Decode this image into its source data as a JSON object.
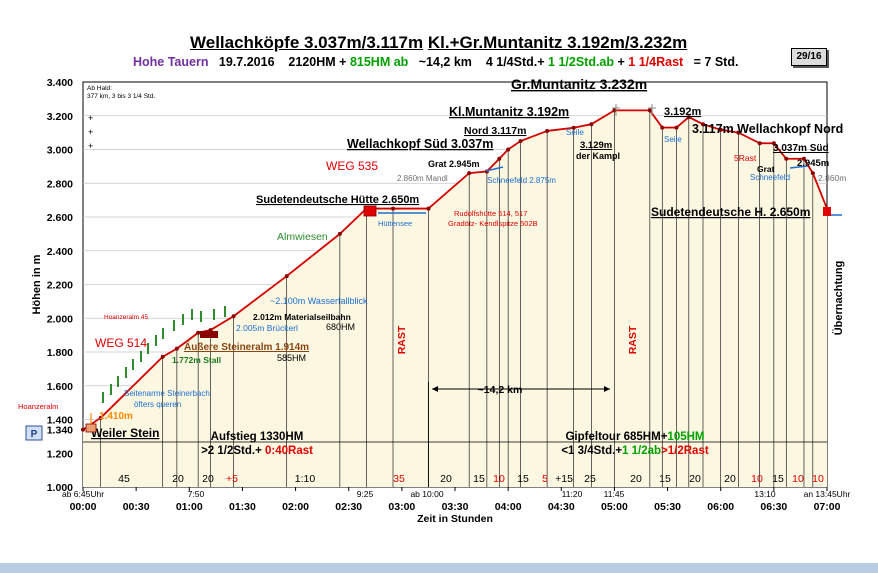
{
  "header": {
    "title_part1": "Wellachköpfe 3.037m/3.117m",
    "title_part2": "Kl.+Gr.Muntanitz 3.192m/3.232m",
    "sub": {
      "region": "Hohe Tauern",
      "date": "19.7.2016",
      "hm": "2120HM",
      "plus": "+",
      "hm_ab": "815HM ab",
      "dist": "~14,2 km",
      "time1": "4 1/4Std.+",
      "time2": "1 1/2Std.ab",
      "plus2": "+",
      "time3": "1 1/4Rast",
      "total": "= 7  Std."
    },
    "page_badge": "29/16"
  },
  "chart_data": {
    "type": "line",
    "title": "",
    "xlabel": "Zeit in Stunden",
    "ylabel": "Höhen in m",
    "x_ticks": [
      "00:00",
      "00:30",
      "01:00",
      "01:30",
      "02:00",
      "02:30",
      "03:00",
      "03:30",
      "04:00",
      "04:30",
      "05:00",
      "05:30",
      "06:00",
      "06:30",
      "07:00"
    ],
    "y_ticks": [
      "1.000",
      "1.200",
      "1.340",
      "1.400",
      "1.600",
      "1.800",
      "2.000",
      "2.200",
      "2.400",
      "2.600",
      "2.800",
      "3.000",
      "3.200",
      "3.400"
    ],
    "xlim": [
      "00:00",
      "07:00"
    ],
    "ylim": [
      1000,
      3400
    ],
    "grid": "horizontal",
    "profile": [
      {
        "t": "00:00",
        "h": 1340
      },
      {
        "t": "00:10",
        "h": 1410
      },
      {
        "t": "00:45",
        "h": 1772
      },
      {
        "t": "00:53",
        "h": 1820
      },
      {
        "t": "01:05",
        "h": 1914
      },
      {
        "t": "01:12",
        "h": 1930
      },
      {
        "t": "01:25",
        "h": 2012
      },
      {
        "t": "01:55",
        "h": 2250
      },
      {
        "t": "02:25",
        "h": 2500
      },
      {
        "t": "02:40",
        "h": 2650
      },
      {
        "t": "02:55",
        "h": 2650
      },
      {
        "t": "03:15",
        "h": 2650
      },
      {
        "t": "03:38",
        "h": 2860
      },
      {
        "t": "03:48",
        "h": 2870
      },
      {
        "t": "03:55",
        "h": 2945
      },
      {
        "t": "04:00",
        "h": 3000
      },
      {
        "t": "04:07",
        "h": 3050
      },
      {
        "t": "04:22",
        "h": 3110
      },
      {
        "t": "04:37",
        "h": 3129
      },
      {
        "t": "04:47",
        "h": 3150
      },
      {
        "t": "05:00",
        "h": 3232
      },
      {
        "t": "05:20",
        "h": 3232
      },
      {
        "t": "05:27",
        "h": 3130
      },
      {
        "t": "05:35",
        "h": 3130
      },
      {
        "t": "05:42",
        "h": 3192
      },
      {
        "t": "05:50",
        "h": 3150
      },
      {
        "t": "06:00",
        "h": 3117
      },
      {
        "t": "06:10",
        "h": 3100
      },
      {
        "t": "06:22",
        "h": 3037
      },
      {
        "t": "06:30",
        "h": 3037
      },
      {
        "t": "06:37",
        "h": 2945
      },
      {
        "t": "06:47",
        "h": 2945
      },
      {
        "t": "06:52",
        "h": 2860
      },
      {
        "t": "07:00",
        "h": 2650
      }
    ],
    "segment_minutes": [
      "45",
      "20",
      "20",
      "+5",
      "1:10",
      "35",
      "20",
      "15",
      "10",
      "15",
      "5",
      "+15",
      "25",
      "20",
      "15",
      "20",
      "20",
      "10",
      "15",
      "10",
      "10"
    ],
    "segment_minutes_red": [
      "+5",
      "35",
      "5",
      "10"
    ],
    "time_marks": [
      "ab 6:45Uhr",
      "7:50",
      "9:25",
      "ab 10:00",
      "11:20",
      "11:45",
      "13:10",
      "an 13:45Uhr"
    ],
    "rest_labels": [
      "RAST",
      "RAST"
    ],
    "summary_left": {
      "line1": "Aufstieg 1330HM",
      "line2_a": ">2 1/2Std.+",
      "line2_b": "0:40Rast"
    },
    "summary_right": {
      "line1_a": "Gipfeltour  685HM+",
      "line1_b": "105HM",
      "line2_a": "<1 3/4Std.+",
      "line2_b": "1  1/2ab",
      "line2_c": ">1/2Rast"
    },
    "annotations": {
      "start_note": "Ab Hald:\n377 km, 3 bis 3 1/4 Std.",
      "plus_marks": "+",
      "weiler": "Weiler Stein",
      "parking": "P",
      "hoanzeralm_low": "Hoanzeralm",
      "h1410": "1.410m",
      "weg514": "WEG 514",
      "hoanzeralm_45": "Hoanzeralm 45",
      "stall": "1.772m Stall",
      "seitenarme1": "Seitenarme Steinerbach",
      "seitenarme2": "öfters queren",
      "aussere": "Äußere Steineralm 1.914m",
      "hm585": "585HM",
      "brueckerl": "2.005m Brückerl",
      "materialseilbahn": "2.012m Materialseilbahn",
      "hm680": "680HM",
      "wasserfall": "~2.100m Wasserfallblick",
      "almwiesen": "Almwiesen",
      "weg535": "WEG 535",
      "sudetenhuette": "Sudetendeutsche Hütte 2.650m",
      "huettensee": "Hüttensee",
      "rudolfs1": "Rudolfshütte 514, 517",
      "rudolfs2": "Gradötz- Kendlspitze 502B",
      "wellach_sued": "Wellachkopf Süd 3.037m",
      "mandl": "2.860m Mandl",
      "grat": "Grat 2.945m",
      "nord": "Nord 3.117m",
      "klmunt": "Kl.Muntanitz 3.192m",
      "schneefeld1": "Schneefeld 2.875m",
      "seile1": "Seile",
      "h3129": "3.129m",
      "kampl": "der Kampl",
      "grmunt": "Gr.Muntanitz 3.232m",
      "h3192": "3.192m",
      "seile2": "Seile",
      "wellach_nord": "3.117m Wellachkopf Nord",
      "rast5": "5Rast",
      "grat2": "Grat",
      "schneefeld2": "Schneefeld",
      "h3037": "3.037m Süd",
      "h2945": "2.945m",
      "h2860": "2.860m",
      "sudeten_h": "Sudetendeutsche  H. 2.650m",
      "km": "~14,2 km",
      "uebernachtung": "Übernachtung"
    }
  }
}
